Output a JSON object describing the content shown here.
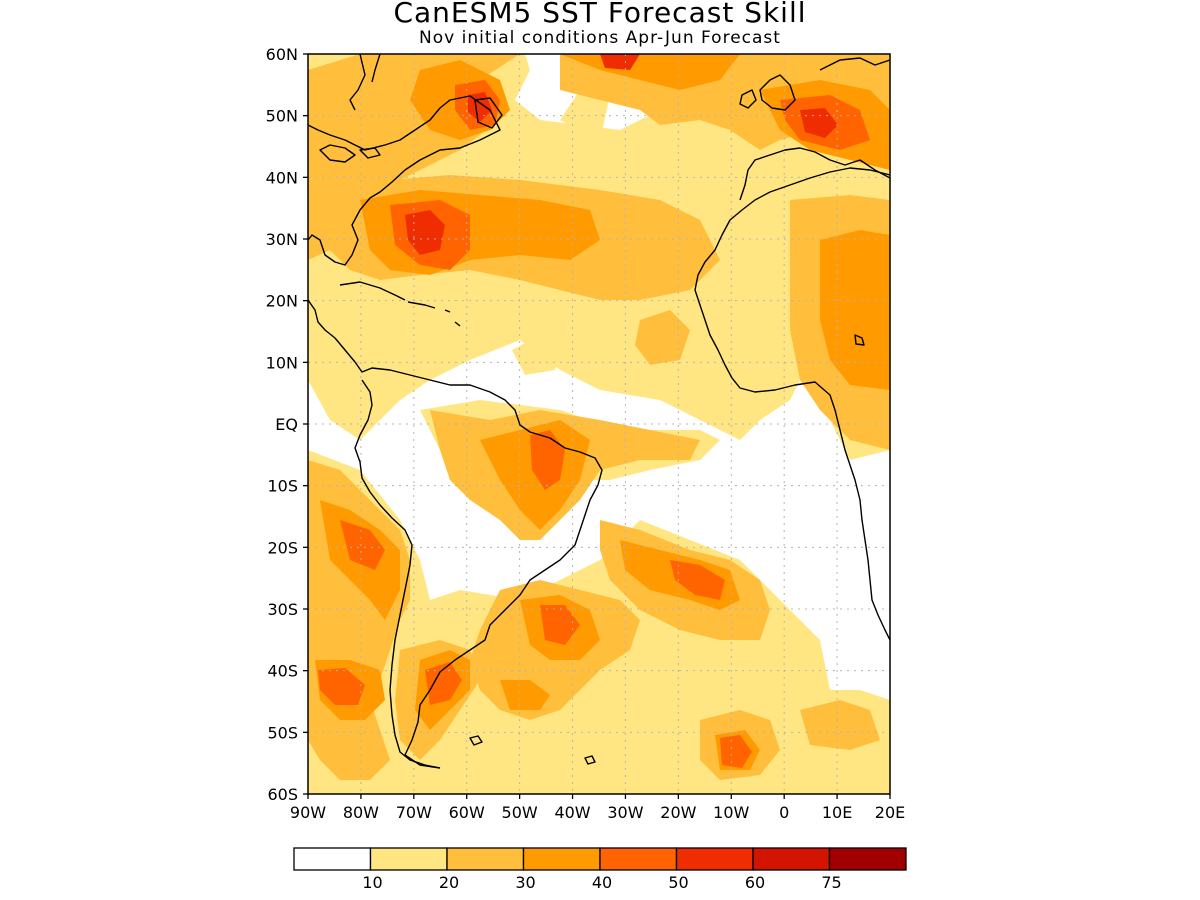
{
  "map": {
    "title": "CanESM5 SST Forecast Skill",
    "subtitle": "Nov initial conditions  Apr-Jun Forecast",
    "lat_labels": [
      "60N",
      "50N",
      "40N",
      "30N",
      "20N",
      "10N",
      "EQ",
      "10S",
      "20S",
      "30S",
      "40S",
      "50S",
      "60S"
    ],
    "lon_labels": [
      "90W",
      "80W",
      "70W",
      "60W",
      "50W",
      "40W",
      "30W",
      "20W",
      "10W",
      "0",
      "10E",
      "20E"
    ],
    "extent": {
      "lon": [
        -90,
        20
      ],
      "lat": [
        -60,
        60
      ]
    },
    "grid": true
  },
  "legend": {
    "ticks": [
      "10",
      "20",
      "30",
      "40",
      "50",
      "60",
      "75"
    ],
    "colors": [
      "#ffffff",
      "#ffe682",
      "#ffbe3c",
      "#ff9a00",
      "#ff6400",
      "#f02d00",
      "#d21400",
      "#a00000"
    ]
  },
  "fill_colors": {
    "c10": "#ffe682",
    "c20": "#ffbe3c",
    "c30": "#ff9a00",
    "c40": "#ff6400",
    "c50": "#f02d00"
  }
}
